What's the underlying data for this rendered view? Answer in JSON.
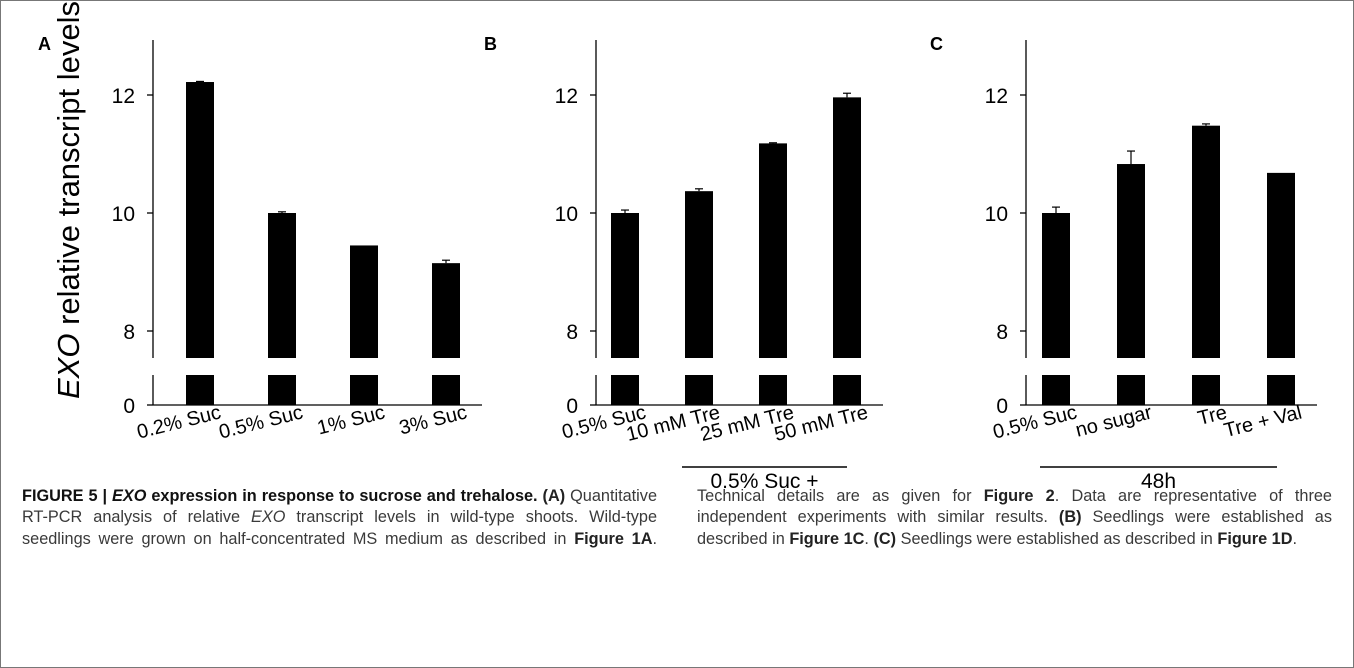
{
  "chart_data": [
    {
      "type": "bar",
      "panel_label": "A",
      "ylabel_italic": "EXO",
      "ylabel_rest": " relative transcript levels",
      "categories": [
        "0.2% Suc",
        "0.5% Suc",
        "1% Suc",
        "3% Suc"
      ],
      "values": [
        12.22,
        10.0,
        9.45,
        9.15
      ],
      "errors": [
        0.01,
        0.02,
        0.0,
        0.05
      ],
      "yticks": [
        0,
        8,
        10,
        12
      ],
      "ylim": [
        0,
        13
      ],
      "broken_axis": true,
      "group_label": ""
    },
    {
      "type": "bar",
      "panel_label": "B",
      "categories": [
        "0.5% Suc",
        "10 mM Tre",
        "25 mM Tre",
        "50 mM Tre"
      ],
      "values": [
        10.0,
        10.37,
        11.18,
        11.96
      ],
      "errors": [
        0.05,
        0.04,
        0.01,
        0.07
      ],
      "yticks": [
        0,
        8,
        10,
        12
      ],
      "ylim": [
        0,
        13
      ],
      "broken_axis": true,
      "group_label": "0.5% Suc +"
    },
    {
      "type": "bar",
      "panel_label": "C",
      "categories": [
        "0.5% Suc",
        "no sugar",
        "Tre",
        "Tre + Val"
      ],
      "values": [
        10.0,
        10.83,
        11.48,
        10.68
      ],
      "errors": [
        0.1,
        0.22,
        0.03,
        0.0
      ],
      "yticks": [
        0,
        8,
        10,
        12
      ],
      "ylim": [
        0,
        13
      ],
      "broken_axis": true,
      "group_label": "48h"
    }
  ],
  "caption": {
    "figure_label": "FIGURE 5 |",
    "title_italic": "EXO",
    "title_rest": " expression in response to sucrose and trehalose.",
    "p_a_label": "(A)",
    "p_a1": " Quantitative RT-PCR analysis of relative ",
    "p_a_exo": "EXO",
    "p_a2": " transcript levels in wild-type shoots. Wild-type seedlings were grown on half-concentrated MS medium as described in ",
    "p_a_ref1": "Figure 1A",
    "p_a3": ". Technical details are as given for ",
    "p_a_ref2": "Figure 2",
    "p_a4": ". Data are representative of three independent experiments with similar results. ",
    "p_b_label": "(B)",
    "p_b1": " Seedlings were established as described in ",
    "p_b_ref": "Figure 1C",
    "p_b2": ". ",
    "p_c_label": "(C)",
    "p_c1": " Seedlings were established as described in ",
    "p_c_ref": "Figure 1D",
    "p_c2": "."
  }
}
